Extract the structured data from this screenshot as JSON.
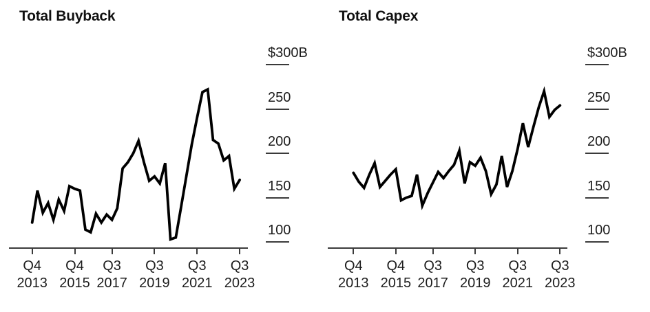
{
  "figure": {
    "background": "#ffffff",
    "text_color": "#1d1d1d",
    "axis_color": "#3a3a3a",
    "line_color": "#000000"
  },
  "chart_data": [
    {
      "type": "line",
      "title": "Total Buyback",
      "unit": "USD billions",
      "grid": false,
      "legend": "none",
      "axis_side": "right",
      "ylim": [
        93,
        310
      ],
      "y_axis": {
        "labels": [
          "$300B",
          "250",
          "200",
          "150",
          "100"
        ],
        "values": [
          300,
          250,
          200,
          150,
          100
        ]
      },
      "x_axis": {
        "ticks": [
          {
            "quarter": "Q4",
            "year": "2013",
            "index": 0
          },
          {
            "quarter": "Q4",
            "year": "2015",
            "index": 8
          },
          {
            "quarter": "Q3",
            "year": "2017",
            "index": 15
          },
          {
            "quarter": "Q3",
            "year": "2019",
            "index": 23
          },
          {
            "quarter": "Q3",
            "year": "2021",
            "index": 31
          },
          {
            "quarter": "Q3",
            "year": "2023",
            "index": 39
          }
        ]
      },
      "x_quarters": [
        "Q4 2013",
        "Q1 2014",
        "Q2 2014",
        "Q3 2014",
        "Q4 2014",
        "Q1 2015",
        "Q2 2015",
        "Q3 2015",
        "Q4 2015",
        "Q1 2016",
        "Q2 2016",
        "Q3 2016",
        "Q4 2016",
        "Q1 2017",
        "Q2 2017",
        "Q3 2017",
        "Q4 2017",
        "Q1 2018",
        "Q2 2018",
        "Q3 2018",
        "Q4 2018",
        "Q1 2019",
        "Q2 2019",
        "Q3 2019",
        "Q4 2019",
        "Q1 2020",
        "Q2 2020",
        "Q3 2020",
        "Q4 2020",
        "Q1 2021",
        "Q2 2021",
        "Q3 2021",
        "Q4 2021",
        "Q1 2022",
        "Q2 2022",
        "Q3 2022",
        "Q4 2022",
        "Q1 2023",
        "Q2 2023",
        "Q3 2023"
      ],
      "values": [
        122,
        158,
        133,
        144,
        125,
        148,
        135,
        163,
        160,
        158,
        114,
        111,
        132,
        122,
        131,
        125,
        138,
        183,
        190,
        200,
        214,
        190,
        169,
        174,
        166,
        189,
        103,
        105,
        140,
        175,
        210,
        240,
        269,
        272,
        215,
        211,
        192,
        197,
        160,
        170
      ]
    },
    {
      "type": "line",
      "title": "Total Capex",
      "unit": "USD billions",
      "grid": false,
      "legend": "none",
      "axis_side": "right",
      "ylim": [
        93,
        310
      ],
      "y_axis": {
        "labels": [
          "$300B",
          "250",
          "200",
          "150",
          "100"
        ],
        "values": [
          300,
          250,
          200,
          150,
          100
        ]
      },
      "x_axis": {
        "ticks": [
          {
            "quarter": "Q4",
            "year": "2013",
            "index": 0
          },
          {
            "quarter": "Q4",
            "year": "2015",
            "index": 8
          },
          {
            "quarter": "Q3",
            "year": "2017",
            "index": 15
          },
          {
            "quarter": "Q3",
            "year": "2019",
            "index": 23
          },
          {
            "quarter": "Q3",
            "year": "2021",
            "index": 31
          },
          {
            "quarter": "Q3",
            "year": "2023",
            "index": 39
          }
        ]
      },
      "x_quarters": [
        "Q4 2013",
        "Q1 2014",
        "Q2 2014",
        "Q3 2014",
        "Q4 2014",
        "Q1 2015",
        "Q2 2015",
        "Q3 2015",
        "Q4 2015",
        "Q1 2016",
        "Q2 2016",
        "Q3 2016",
        "Q4 2016",
        "Q1 2017",
        "Q2 2017",
        "Q3 2017",
        "Q4 2017",
        "Q1 2018",
        "Q2 2018",
        "Q3 2018",
        "Q4 2018",
        "Q1 2019",
        "Q2 2019",
        "Q3 2019",
        "Q4 2019",
        "Q1 2020",
        "Q2 2020",
        "Q3 2020",
        "Q4 2020",
        "Q1 2021",
        "Q2 2021",
        "Q3 2021",
        "Q4 2021",
        "Q1 2022",
        "Q2 2022",
        "Q3 2022",
        "Q4 2022",
        "Q1 2023",
        "Q2 2023",
        "Q3 2023"
      ],
      "values": [
        178,
        168,
        161,
        176,
        189,
        162,
        169,
        176,
        182,
        147,
        150,
        152,
        176,
        141,
        155,
        167,
        179,
        172,
        180,
        187,
        203,
        166,
        190,
        186,
        195,
        180,
        154,
        165,
        197,
        162,
        180,
        205,
        234,
        207,
        230,
        252,
        270,
        241,
        249,
        254
      ]
    }
  ]
}
